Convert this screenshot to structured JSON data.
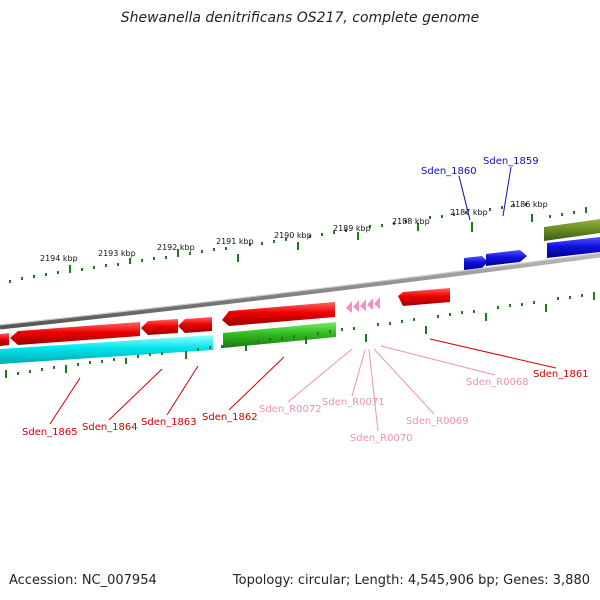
{
  "title": "Shewanella denitrificans OS217, complete genome",
  "footer": {
    "accession": "Accession: NC_007954",
    "topology": "Topology: circular; Length: 4,545,906 bp; Genes: 3,880"
  },
  "scale_labels": [
    "2194 kbp",
    "2193 kbp",
    "2192 kbp",
    "2191 kbp",
    "2190 kbp",
    "2189 kbp",
    "2188 kbp",
    "2187 kbp",
    "2186 kbp"
  ],
  "gene_labels": [
    {
      "text": "Sden_1860",
      "color": "#1010c0"
    },
    {
      "text": "Sden_1859",
      "color": "#1010c0"
    },
    {
      "text": "Sden_1865",
      "color": "#d00000"
    },
    {
      "text": "Sden_1864",
      "color": "#d00000"
    },
    {
      "text": "Sden_1863",
      "color": "#d00000"
    },
    {
      "text": "Sden_1862",
      "color": "#d00000"
    },
    {
      "text": "Sden_1861",
      "color": "#d00000"
    },
    {
      "text": "Sden_R0072",
      "color": "#f090b8"
    },
    {
      "text": "Sden_R0071",
      "color": "#f090b8"
    },
    {
      "text": "Sden_R0070",
      "color": "#f090b8"
    },
    {
      "text": "Sden_R0069",
      "color": "#f090b8"
    },
    {
      "text": "Sden_R0068",
      "color": "#f090b8"
    }
  ],
  "colors": {
    "cds_red": "#ee0000",
    "cds_blue": "#1010e0",
    "cds_green": "#33bb22",
    "cds_olive": "#6b8e23",
    "cyan": "#00e5ee",
    "trna_pink": "#f090c8",
    "backbone": "#888888",
    "tick_green": "#1e7a1e"
  }
}
